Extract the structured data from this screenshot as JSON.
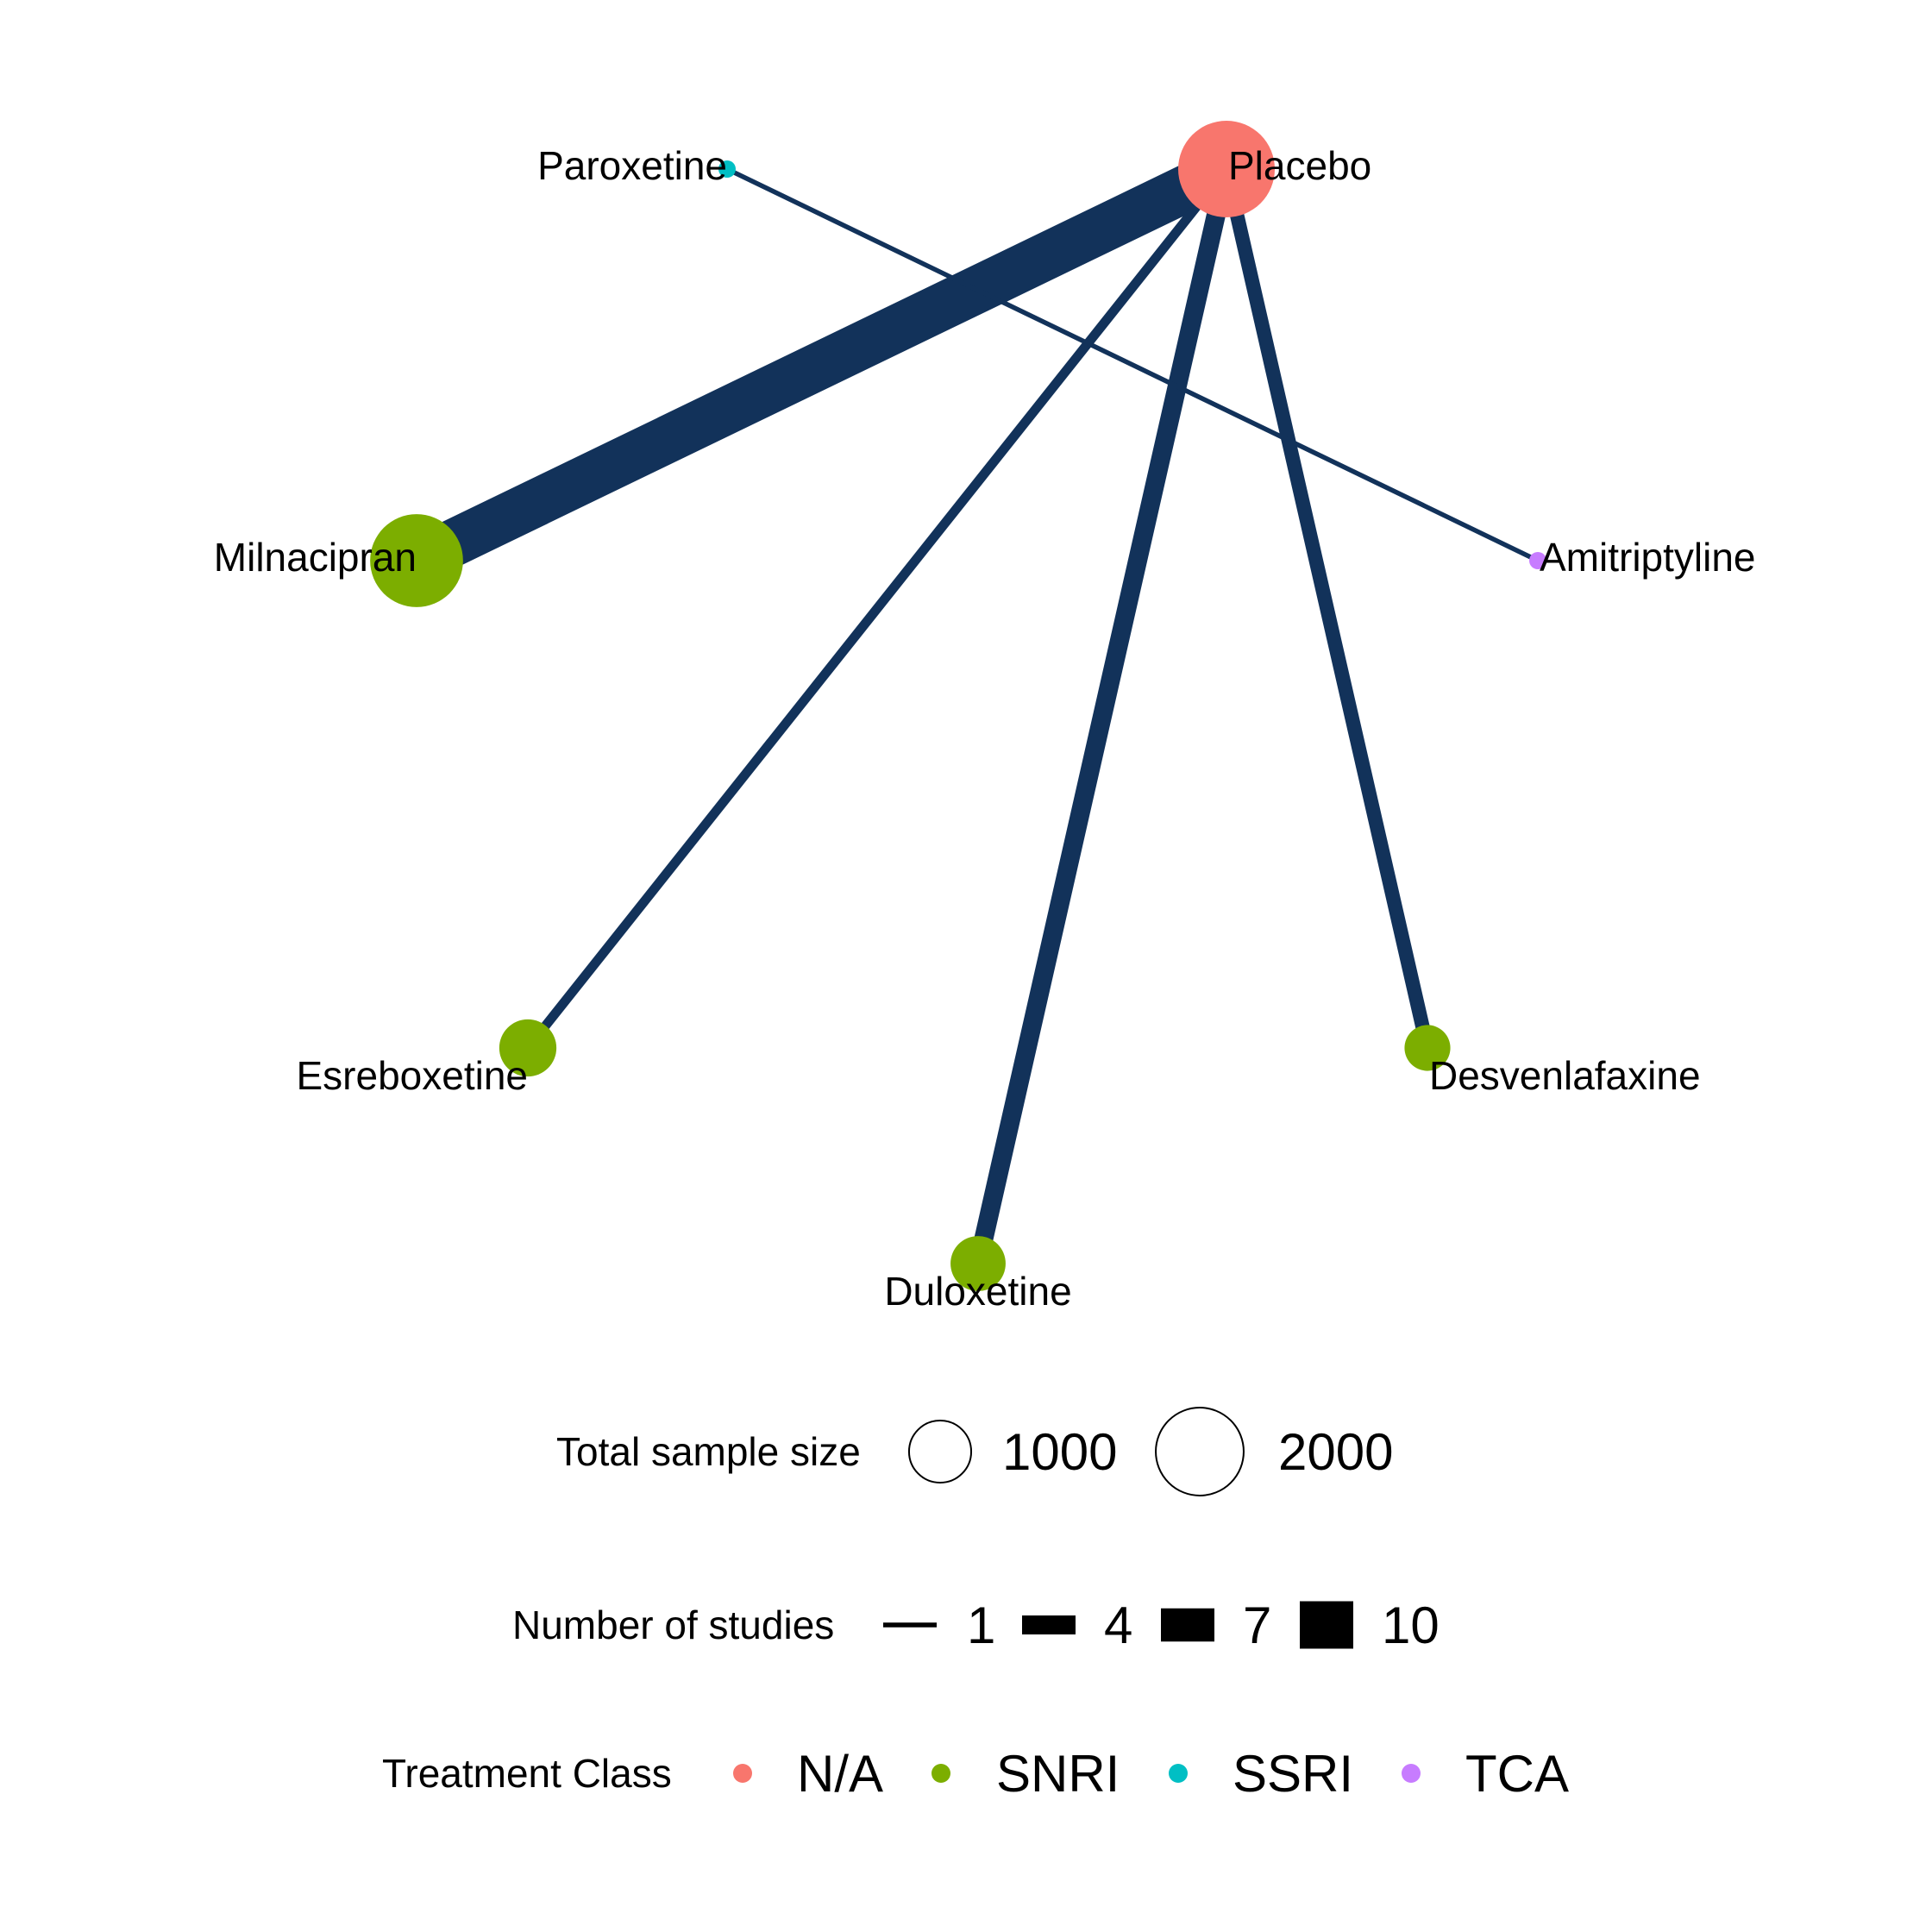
{
  "colors": {
    "edge": "#12325a",
    "N/A": "#f8766d",
    "SNRI": "#7cae00",
    "SSRI": "#00bfc4",
    "TCA": "#c77cff"
  },
  "chart_data": {
    "type": "network",
    "nodes": [
      {
        "id": "Placebo",
        "label": "Placebo",
        "class": "N/A",
        "sample_size": 2000
      },
      {
        "id": "Paroxetine",
        "label": "Paroxetine",
        "class": "SSRI",
        "sample_size": 40
      },
      {
        "id": "Milnacipran",
        "label": "Milnacipran",
        "class": "SNRI",
        "sample_size": 1850
      },
      {
        "id": "Amitriptyline",
        "label": "Amitriptyline",
        "class": "TCA",
        "sample_size": 40
      },
      {
        "id": "Esreboxetine",
        "label": "Esreboxetine",
        "class": "SNRI",
        "sample_size": 700
      },
      {
        "id": "Desvenlafaxine",
        "label": "Desvenlafaxine",
        "class": "SNRI",
        "sample_size": 450
      },
      {
        "id": "Duloxetine",
        "label": "Duloxetine",
        "class": "SNRI",
        "sample_size": 650
      }
    ],
    "edges": [
      {
        "from": "Placebo",
        "to": "Milnacipran",
        "studies": 10
      },
      {
        "from": "Placebo",
        "to": "Esreboxetine",
        "studies": 2
      },
      {
        "from": "Placebo",
        "to": "Duloxetine",
        "studies": 4
      },
      {
        "from": "Placebo",
        "to": "Desvenlafaxine",
        "studies": 3
      },
      {
        "from": "Paroxetine",
        "to": "Amitriptyline",
        "studies": 1
      }
    ]
  },
  "legend": {
    "sample_size": {
      "title": "Total sample size",
      "items": [
        {
          "label": "1000",
          "value": 1000
        },
        {
          "label": "2000",
          "value": 2000
        }
      ]
    },
    "studies": {
      "title": "Number of studies",
      "items": [
        {
          "label": "1",
          "value": 1
        },
        {
          "label": "4",
          "value": 4
        },
        {
          "label": "7",
          "value": 7
        },
        {
          "label": "10",
          "value": 10
        }
      ]
    },
    "treatment_class": {
      "title": "Treatment Class",
      "items": [
        {
          "label": "N/A"
        },
        {
          "label": "SNRI"
        },
        {
          "label": "SSRI"
        },
        {
          "label": "TCA"
        }
      ]
    }
  }
}
